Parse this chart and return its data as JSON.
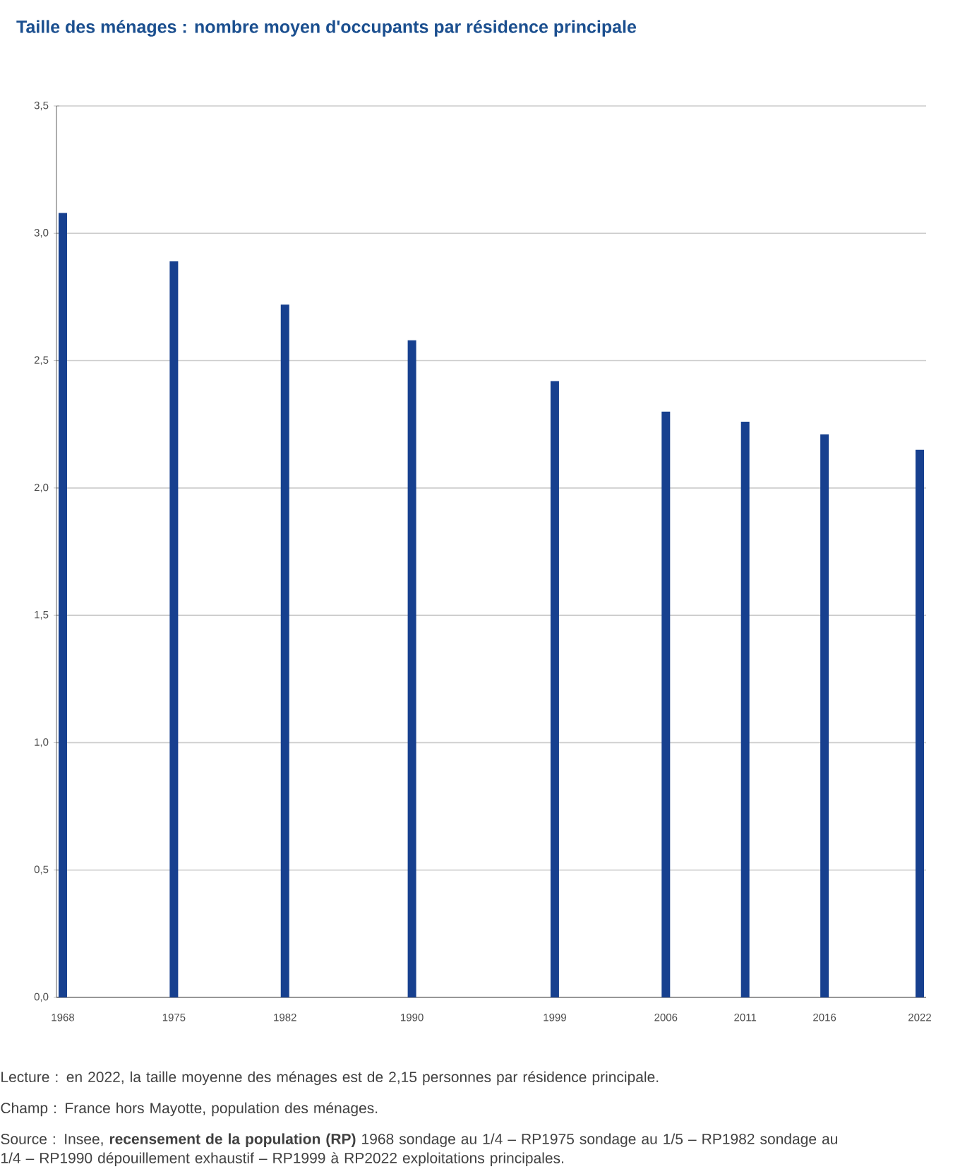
{
  "chart_data": {
    "type": "bar",
    "title": "Taille des ménages : nombre moyen d'occupants par résidence principale",
    "x": [
      1968,
      1975,
      1982,
      1990,
      1999,
      2006,
      2011,
      2016,
      2022
    ],
    "values": [
      3.08,
      2.89,
      2.72,
      2.58,
      2.42,
      2.3,
      2.26,
      2.21,
      2.15
    ],
    "color": "#17408f",
    "xlim": [
      1967.6,
      2022.4
    ],
    "xticks": [
      1968,
      1975,
      1982,
      1990,
      1999,
      2006,
      2011,
      2016,
      2022
    ],
    "ylim": [
      0,
      3.5
    ],
    "yticks": [
      {
        "value": 0,
        "label": "0,0"
      },
      {
        "value": 0.5,
        "label": "0,5"
      },
      {
        "value": 1,
        "label": "1,0"
      },
      {
        "value": 1.5,
        "label": "1,5"
      },
      {
        "value": 2,
        "label": "2,0"
      },
      {
        "value": 2.5,
        "label": "2,5"
      },
      {
        "value": 3,
        "label": "3,0"
      },
      {
        "value": 3.5,
        "label": "3,5"
      }
    ],
    "grid": "y",
    "annotations": [
      "Lecture : en 2022, la taille moyenne des ménages est de 2,15 personnes par résidence principale.",
      "Champ : France hors Mayotte, population des ménages.",
      "Source : Insee, **recensement de la population (RP)** 1968 sondage au 1/4 – RP1975 sondage au 1/5 – RP1982 sondage au 1/4 – RP1990 dépouillement exhaustif – RP1999 à RP2022 exploitations principales."
    ]
  }
}
